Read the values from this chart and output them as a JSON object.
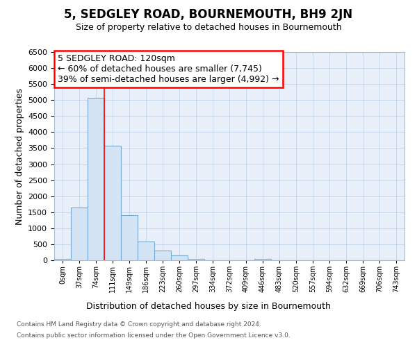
{
  "title": "5, SEDGLEY ROAD, BOURNEMOUTH, BH9 2JN",
  "subtitle": "Size of property relative to detached houses in Bournemouth",
  "xlabel": "Distribution of detached houses by size in Bournemouth",
  "ylabel": "Number of detached properties",
  "footnote1": "Contains HM Land Registry data © Crown copyright and database right 2024.",
  "footnote2": "Contains public sector information licensed under the Open Government Licence v3.0.",
  "annotation_title": "5 SEDGLEY ROAD: 120sqm",
  "annotation_line1": "← 60% of detached houses are smaller (7,745)",
  "annotation_line2": "39% of semi-detached houses are larger (4,992) →",
  "bar_labels": [
    "0sqm",
    "37sqm",
    "74sqm",
    "111sqm",
    "149sqm",
    "186sqm",
    "223sqm",
    "260sqm",
    "297sqm",
    "334sqm",
    "372sqm",
    "409sqm",
    "446sqm",
    "483sqm",
    "520sqm",
    "557sqm",
    "594sqm",
    "632sqm",
    "669sqm",
    "706sqm",
    "743sqm"
  ],
  "bar_values": [
    50,
    1650,
    5080,
    3580,
    1400,
    580,
    300,
    160,
    50,
    0,
    0,
    0,
    50,
    0,
    0,
    0,
    0,
    0,
    0,
    0,
    0
  ],
  "bar_color": "#d4e4f4",
  "bar_edge_color": "#7aaad0",
  "red_line_x": 3.0,
  "ylim_max": 6500,
  "ytick_step": 500,
  "grid_color": "#c8d8ec",
  "background_color": "#e8eff8",
  "title_fontsize": 12,
  "subtitle_fontsize": 9,
  "ylabel_fontsize": 9,
  "xlabel_fontsize": 9,
  "tick_fontsize": 8,
  "annotation_fontsize": 9
}
